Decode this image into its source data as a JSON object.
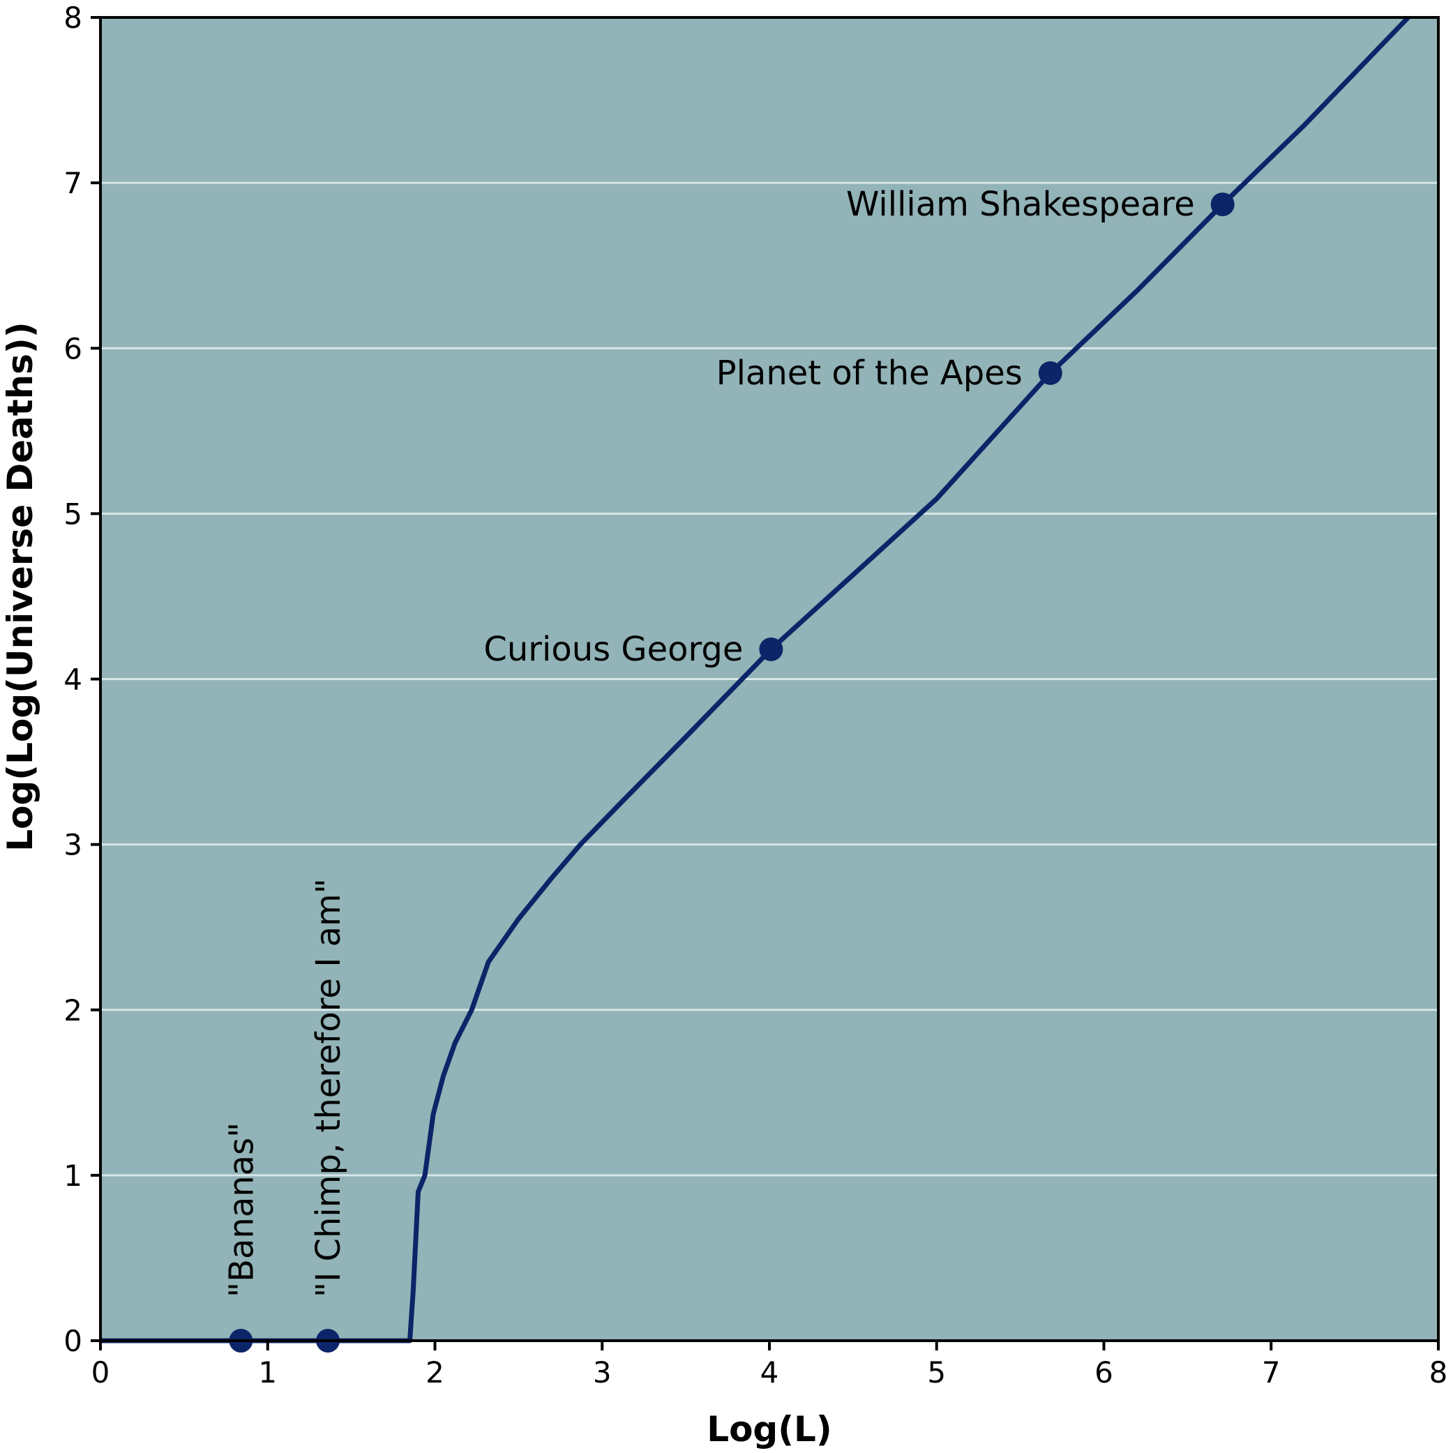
{
  "chart_data": {
    "type": "line",
    "title": "",
    "xlabel": "Log(L)",
    "ylabel": "Log(Log(Universe Deaths))",
    "xlim": [
      0,
      8
    ],
    "ylim": [
      0,
      8
    ],
    "xticks": [
      "0",
      "1",
      "2",
      "3",
      "4",
      "5",
      "6",
      "7",
      "8"
    ],
    "yticks": [
      "0",
      "1",
      "2",
      "3",
      "4",
      "5",
      "6",
      "7",
      "8"
    ],
    "grid": "horizontal",
    "legend": null,
    "colors": {
      "background": "#92b3b7",
      "line": "#0c2468",
      "grid": "#d6e6e8",
      "axis": "#000000"
    },
    "series": [
      {
        "name": "curve",
        "x": [
          0,
          1.85,
          1.87,
          1.9,
          1.94,
          1.99,
          2.05,
          2.12,
          2.22,
          2.32,
          2.5,
          2.7,
          2.87,
          3.12,
          3.5,
          4.01,
          4.5,
          5.0,
          5.68,
          6.2,
          6.71,
          7.2,
          7.82
        ],
        "y": [
          0,
          0,
          0.3,
          0.9,
          1.0,
          1.37,
          1.6,
          1.8,
          2.0,
          2.29,
          2.55,
          2.8,
          3.0,
          3.26,
          3.65,
          4.18,
          4.63,
          5.09,
          5.85,
          6.35,
          6.87,
          7.35,
          8.0
        ]
      }
    ],
    "points": [
      {
        "label": "\"Bananas\"",
        "x": 0.84,
        "y": 0.0,
        "label_orientation": "vertical"
      },
      {
        "label": "\"I Chimp, therefore I am\"",
        "x": 1.36,
        "y": 0.0,
        "label_orientation": "vertical"
      },
      {
        "label": "Curious George",
        "x": 4.01,
        "y": 4.18,
        "label_orientation": "horizontal"
      },
      {
        "label": "Planet of the Apes",
        "x": 5.68,
        "y": 5.85,
        "label_orientation": "horizontal"
      },
      {
        "label": "William Shakespeare",
        "x": 6.71,
        "y": 6.87,
        "label_orientation": "horizontal"
      }
    ]
  }
}
